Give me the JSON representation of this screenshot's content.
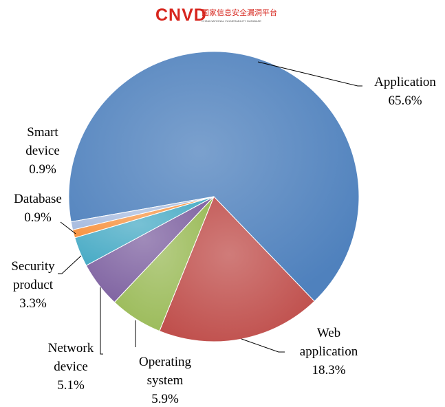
{
  "header": {
    "logo": "CNVD",
    "name": "国家信息安全漏洞平台",
    "subname": "CHINA NATIONAL VULNERABILITY DATABASE"
  },
  "chart_data": {
    "type": "pie",
    "categories": [
      "Application",
      "Web application",
      "Operating system",
      "Network device",
      "Security product",
      "Database",
      "Smart device"
    ],
    "values": [
      65.6,
      18.3,
      5.9,
      5.1,
      3.3,
      0.9,
      0.9
    ],
    "value_labels": [
      "65.6%",
      "18.3%",
      "5.9%",
      "5.1%",
      "3.3%",
      "0.9%",
      "0.9%"
    ],
    "colors": [
      "#4f81bd",
      "#c0504d",
      "#9bbb59",
      "#8064a2",
      "#4bacc6",
      "#f79646",
      "#a9bde0"
    ]
  }
}
